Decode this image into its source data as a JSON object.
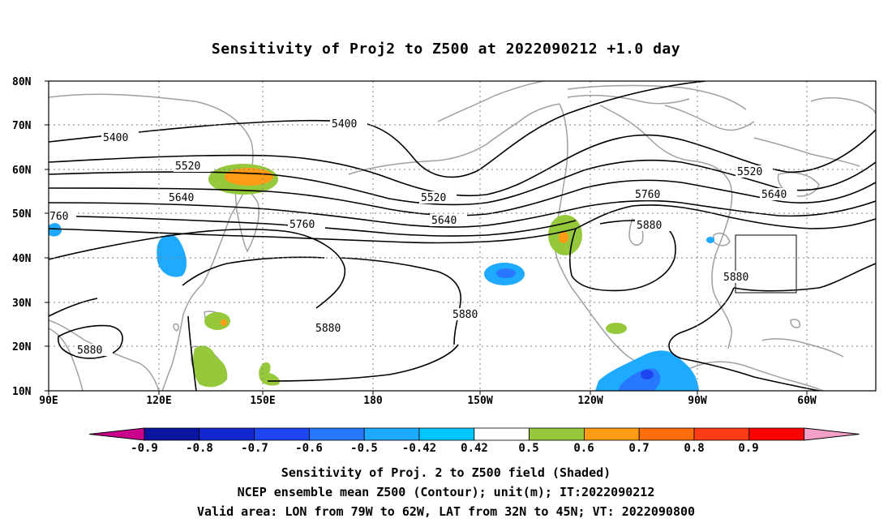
{
  "title": "Sensitivity of Proj2 to Z500 at 2022090212 +1.0 day",
  "lat_labels": [
    "80N",
    "70N",
    "60N",
    "50N",
    "40N",
    "30N",
    "20N",
    "10N"
  ],
  "lon_labels": [
    "90E",
    "120E",
    "150E",
    "180",
    "150W",
    "120W",
    "90W",
    "60W"
  ],
  "contour_labels": [
    "5400",
    "5400",
    "5520",
    "5520",
    "5520",
    "5640",
    "5640",
    "5640",
    "760",
    "5760",
    "5760",
    "5880",
    "5880",
    "5880",
    "5880",
    "5880"
  ],
  "colorbar": {
    "labels": [
      "-0.9",
      "-0.8",
      "-0.7",
      "-0.6",
      "-0.5",
      "-0.42",
      "0.42",
      "0.5",
      "0.6",
      "0.7",
      "0.8",
      "0.9"
    ],
    "colors": [
      "#c8008c",
      "#0a14a0",
      "#1428d2",
      "#1e46f0",
      "#2878ff",
      "#1eaaff",
      "#00c8ff",
      "#ffffff",
      "#96c83c",
      "#ff9b14",
      "#ff6e0a",
      "#ff3c14",
      "#ff0000",
      "#f5a0c8"
    ]
  },
  "captions": [
    "Sensitivity of Proj. 2 to Z500 field (Shaded)",
    "NCEP ensemble mean Z500 (Contour); unit(m); IT:2022090212",
    "Valid area: LON from 79W to 62W, LAT from 32N to 45N; VT: 2022090800"
  ],
  "colors": {
    "coast": "#a0a0a0",
    "contour": "#000000",
    "grid": "#808080"
  }
}
